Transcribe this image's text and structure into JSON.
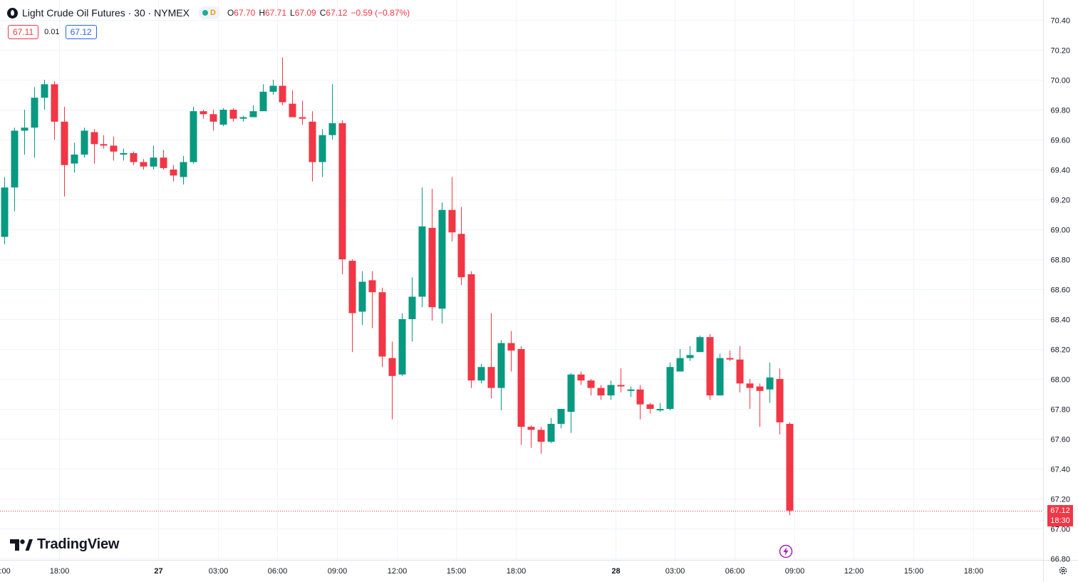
{
  "header": {
    "title": "Light Crude Oil Futures · 30 · NYMEX",
    "status_letter": "D",
    "ohlc": {
      "o_label": "O",
      "o_value": "67.70",
      "h_label": "H",
      "h_value": "67.71",
      "l_label": "L",
      "l_value": "67.09",
      "c_label": "C",
      "c_value": "67.12",
      "change": "−0.59 (−0.87%)"
    }
  },
  "quote": {
    "bid": "67.11",
    "spread": "0.01",
    "ask": "67.12"
  },
  "last_price": {
    "price": "67.12",
    "countdown": "18:30"
  },
  "branding": {
    "name": "TradingView"
  },
  "icons": {
    "symbol": "oil-drop-icon",
    "status": "market-status-dot-icon",
    "logo": "tradingview-logo-icon",
    "replay": "lightning-bolt-icon",
    "settings": "gear-icon"
  },
  "colors": {
    "up": "#089981",
    "down": "#f23645",
    "grid": "#f0f3fa",
    "text": "#131722",
    "accent_purple": "#9c27b0"
  },
  "chart_data": {
    "type": "candlestick",
    "interval": "30",
    "y_axis_side": "right",
    "ylim": [
      66.76,
      70.5
    ],
    "yticks": [
      "70.40",
      "70.20",
      "70.00",
      "69.80",
      "69.60",
      "69.40",
      "69.20",
      "69.00",
      "68.80",
      "68.60",
      "68.40",
      "68.20",
      "68.00",
      "67.80",
      "67.60",
      "67.40",
      "67.20",
      "67.00",
      "66.80"
    ],
    "grid": true,
    "x_ticks": [
      {
        "label": ":00",
        "slot": -0.5
      },
      {
        "label": "18:00",
        "slot": 5.5
      },
      {
        "label": "27",
        "slot": 15.5
      },
      {
        "label": "03:00",
        "slot": 21.5
      },
      {
        "label": "06:00",
        "slot": 27.5
      },
      {
        "label": "09:00",
        "slot": 33.5
      },
      {
        "label": "12:00",
        "slot": 39.5
      },
      {
        "label": "15:00",
        "slot": 45.5
      },
      {
        "label": "18:00",
        "slot": 51.5
      },
      {
        "label": "28",
        "slot": 61.5
      },
      {
        "label": "03:00",
        "slot": 67.5
      },
      {
        "label": "06:00",
        "slot": 73.5
      },
      {
        "label": "09:00",
        "slot": 79.5
      },
      {
        "label": "12:00",
        "slot": 85.5
      },
      {
        "label": "15:00",
        "slot": 91.5
      },
      {
        "label": "18:00",
        "slot": 97.5
      }
    ],
    "candles": [
      {
        "o": 68.95,
        "h": 69.35,
        "l": 68.9,
        "c": 69.28
      },
      {
        "o": 69.28,
        "h": 69.68,
        "l": 69.12,
        "c": 69.66
      },
      {
        "o": 69.66,
        "h": 69.8,
        "l": 69.5,
        "c": 69.68
      },
      {
        "o": 69.68,
        "h": 69.95,
        "l": 69.48,
        "c": 69.88
      },
      {
        "o": 69.88,
        "h": 70.0,
        "l": 69.8,
        "c": 69.97
      },
      {
        "o": 69.97,
        "h": 69.99,
        "l": 69.6,
        "c": 69.72
      },
      {
        "o": 69.72,
        "h": 69.82,
        "l": 69.22,
        "c": 69.43
      },
      {
        "o": 69.44,
        "h": 69.58,
        "l": 69.38,
        "c": 69.5
      },
      {
        "o": 69.5,
        "h": 69.68,
        "l": 69.48,
        "c": 69.66
      },
      {
        "o": 69.65,
        "h": 69.67,
        "l": 69.44,
        "c": 69.57
      },
      {
        "o": 69.57,
        "h": 69.63,
        "l": 69.54,
        "c": 69.56
      },
      {
        "o": 69.56,
        "h": 69.62,
        "l": 69.46,
        "c": 69.52
      },
      {
        "o": 69.5,
        "h": 69.54,
        "l": 69.46,
        "c": 69.51
      },
      {
        "o": 69.51,
        "h": 69.52,
        "l": 69.43,
        "c": 69.45
      },
      {
        "o": 69.45,
        "h": 69.47,
        "l": 69.4,
        "c": 69.42
      },
      {
        "o": 69.42,
        "h": 69.56,
        "l": 69.4,
        "c": 69.48
      },
      {
        "o": 69.48,
        "h": 69.53,
        "l": 69.4,
        "c": 69.41
      },
      {
        "o": 69.4,
        "h": 69.43,
        "l": 69.32,
        "c": 69.36
      },
      {
        "o": 69.35,
        "h": 69.49,
        "l": 69.3,
        "c": 69.45
      },
      {
        "o": 69.45,
        "h": 69.82,
        "l": 69.44,
        "c": 69.79
      },
      {
        "o": 69.79,
        "h": 69.8,
        "l": 69.74,
        "c": 69.77
      },
      {
        "o": 69.77,
        "h": 69.8,
        "l": 69.66,
        "c": 69.72
      },
      {
        "o": 69.7,
        "h": 69.81,
        "l": 69.69,
        "c": 69.8
      },
      {
        "o": 69.8,
        "h": 69.81,
        "l": 69.72,
        "c": 69.74
      },
      {
        "o": 69.74,
        "h": 69.76,
        "l": 69.72,
        "c": 69.75
      },
      {
        "o": 69.75,
        "h": 69.83,
        "l": 69.75,
        "c": 69.79
      },
      {
        "o": 69.79,
        "h": 69.97,
        "l": 69.79,
        "c": 69.92
      },
      {
        "o": 69.92,
        "h": 70.0,
        "l": 69.9,
        "c": 69.96
      },
      {
        "o": 69.96,
        "h": 70.15,
        "l": 69.83,
        "c": 69.85
      },
      {
        "o": 69.84,
        "h": 69.93,
        "l": 69.76,
        "c": 69.75
      },
      {
        "o": 69.75,
        "h": 69.86,
        "l": 69.7,
        "c": 69.74
      },
      {
        "o": 69.72,
        "h": 69.79,
        "l": 69.32,
        "c": 69.45
      },
      {
        "o": 69.45,
        "h": 69.67,
        "l": 69.35,
        "c": 69.63
      },
      {
        "o": 69.63,
        "h": 69.97,
        "l": 69.6,
        "c": 69.71
      },
      {
        "o": 69.71,
        "h": 69.73,
        "l": 68.7,
        "c": 68.8
      },
      {
        "o": 68.79,
        "h": 68.8,
        "l": 68.18,
        "c": 68.44
      },
      {
        "o": 68.45,
        "h": 68.72,
        "l": 68.36,
        "c": 68.65
      },
      {
        "o": 68.66,
        "h": 68.72,
        "l": 68.34,
        "c": 68.58
      },
      {
        "o": 68.58,
        "h": 68.61,
        "l": 68.08,
        "c": 68.15
      },
      {
        "o": 68.14,
        "h": 68.25,
        "l": 67.73,
        "c": 68.02
      },
      {
        "o": 68.03,
        "h": 68.44,
        "l": 68.02,
        "c": 68.4
      },
      {
        "o": 68.4,
        "h": 68.68,
        "l": 68.25,
        "c": 68.55
      },
      {
        "o": 68.55,
        "h": 69.28,
        "l": 68.48,
        "c": 69.02
      },
      {
        "o": 69.01,
        "h": 69.27,
        "l": 68.39,
        "c": 68.48
      },
      {
        "o": 68.47,
        "h": 69.18,
        "l": 68.37,
        "c": 69.13
      },
      {
        "o": 69.13,
        "h": 69.35,
        "l": 68.92,
        "c": 68.98
      },
      {
        "o": 68.97,
        "h": 69.15,
        "l": 68.63,
        "c": 68.68
      },
      {
        "o": 68.7,
        "h": 68.72,
        "l": 67.94,
        "c": 67.99
      },
      {
        "o": 67.99,
        "h": 68.1,
        "l": 67.97,
        "c": 68.08
      },
      {
        "o": 68.08,
        "h": 68.44,
        "l": 67.87,
        "c": 67.94
      },
      {
        "o": 67.94,
        "h": 68.26,
        "l": 67.79,
        "c": 68.24
      },
      {
        "o": 68.24,
        "h": 68.32,
        "l": 68.05,
        "c": 68.19
      },
      {
        "o": 68.2,
        "h": 68.22,
        "l": 67.56,
        "c": 67.68
      },
      {
        "o": 67.68,
        "h": 67.69,
        "l": 67.54,
        "c": 67.66
      },
      {
        "o": 67.66,
        "h": 67.68,
        "l": 67.5,
        "c": 67.58
      },
      {
        "o": 67.58,
        "h": 67.74,
        "l": 67.57,
        "c": 67.7
      },
      {
        "o": 67.7,
        "h": 67.79,
        "l": 67.67,
        "c": 67.8
      },
      {
        "o": 67.78,
        "h": 68.04,
        "l": 67.64,
        "c": 68.03
      },
      {
        "o": 68.03,
        "h": 68.05,
        "l": 67.96,
        "c": 67.99
      },
      {
        "o": 67.99,
        "h": 68.0,
        "l": 67.89,
        "c": 67.94
      },
      {
        "o": 67.94,
        "h": 67.96,
        "l": 67.86,
        "c": 67.89
      },
      {
        "o": 67.89,
        "h": 67.99,
        "l": 67.86,
        "c": 67.96
      },
      {
        "o": 67.96,
        "h": 68.07,
        "l": 67.91,
        "c": 67.95
      },
      {
        "o": 67.92,
        "h": 67.95,
        "l": 67.88,
        "c": 67.93
      },
      {
        "o": 67.93,
        "h": 67.96,
        "l": 67.73,
        "c": 67.83
      },
      {
        "o": 67.83,
        "h": 67.84,
        "l": 67.77,
        "c": 67.8
      },
      {
        "o": 67.79,
        "h": 67.84,
        "l": 67.78,
        "c": 67.8
      },
      {
        "o": 67.8,
        "h": 68.11,
        "l": 67.79,
        "c": 68.08
      },
      {
        "o": 68.05,
        "h": 68.2,
        "l": 68.05,
        "c": 68.14
      },
      {
        "o": 68.14,
        "h": 68.22,
        "l": 68.12,
        "c": 68.16
      },
      {
        "o": 68.18,
        "h": 68.29,
        "l": 68.18,
        "c": 68.28
      },
      {
        "o": 68.28,
        "h": 68.3,
        "l": 67.86,
        "c": 67.89
      },
      {
        "o": 67.89,
        "h": 68.17,
        "l": 67.89,
        "c": 68.14
      },
      {
        "o": 68.14,
        "h": 68.19,
        "l": 68.12,
        "c": 68.13
      },
      {
        "o": 68.13,
        "h": 68.22,
        "l": 67.91,
        "c": 67.97
      },
      {
        "o": 67.97,
        "h": 68.0,
        "l": 67.8,
        "c": 67.94
      },
      {
        "o": 67.95,
        "h": 67.97,
        "l": 67.68,
        "c": 67.92
      },
      {
        "o": 67.93,
        "h": 68.11,
        "l": 67.84,
        "c": 68.01
      },
      {
        "o": 68.0,
        "h": 68.07,
        "l": 67.63,
        "c": 67.71
      },
      {
        "o": 67.7,
        "h": 67.71,
        "l": 67.09,
        "c": 67.12
      }
    ],
    "last_price": 67.12
  }
}
